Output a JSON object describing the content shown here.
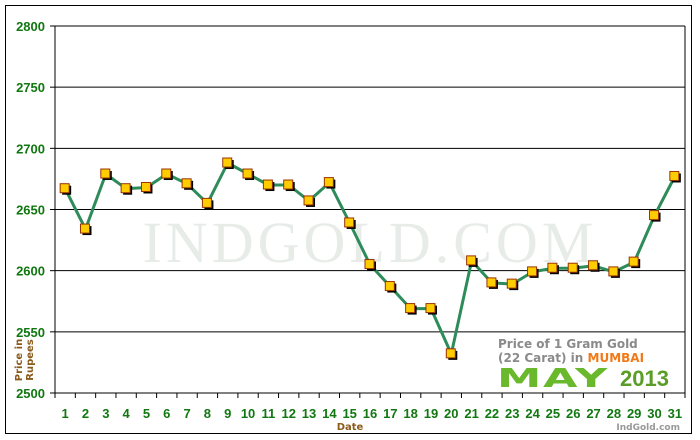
{
  "chart_data": {
    "type": "line",
    "title": "Price of 1 Gram Gold (22 Carat) in MUMBAI",
    "subtitle": "MAY 2013",
    "xlabel": "Date",
    "ylabel": "Price in Rupees",
    "ylim": [
      2500,
      2800
    ],
    "yticks": [
      2500,
      2550,
      2600,
      2650,
      2700,
      2750,
      2800
    ],
    "grid": true,
    "legend_position": "none",
    "categories": [
      "1",
      "2",
      "3",
      "4",
      "5",
      "6",
      "7",
      "8",
      "9",
      "10",
      "11",
      "12",
      "13",
      "14",
      "15",
      "16",
      "17",
      "18",
      "19",
      "20",
      "21",
      "22",
      "23",
      "24",
      "25",
      "26",
      "27",
      "28",
      "29",
      "30",
      "31"
    ],
    "series": [
      {
        "name": "Price of 1 Gram Gold (22 Carat)",
        "values": [
          2667,
          2634,
          2679,
          2667,
          2668,
          2679,
          2671,
          2655,
          2688,
          2679,
          2670,
          2670,
          2657,
          2672,
          2639,
          2605,
          2587,
          2569,
          2569,
          2532,
          2608,
          2590,
          2589,
          2599,
          2602,
          2602,
          2604,
          2599,
          2607,
          2645,
          2677
        ]
      }
    ],
    "colors": {
      "line": "#2e8b5a",
      "marker_fill": "#ffcc00",
      "marker_border": "#993300",
      "tick_text": "#117711",
      "axis_label": "#8a5a1a"
    }
  },
  "watermark": "INDGOLD.COM",
  "legend": {
    "line1": "Price of 1 Gram Gold",
    "line2_prefix": "(22 Carat) in ",
    "city": "MUMBAI",
    "month": "MAY",
    "year": "2013"
  },
  "credit": "IndGold.com"
}
